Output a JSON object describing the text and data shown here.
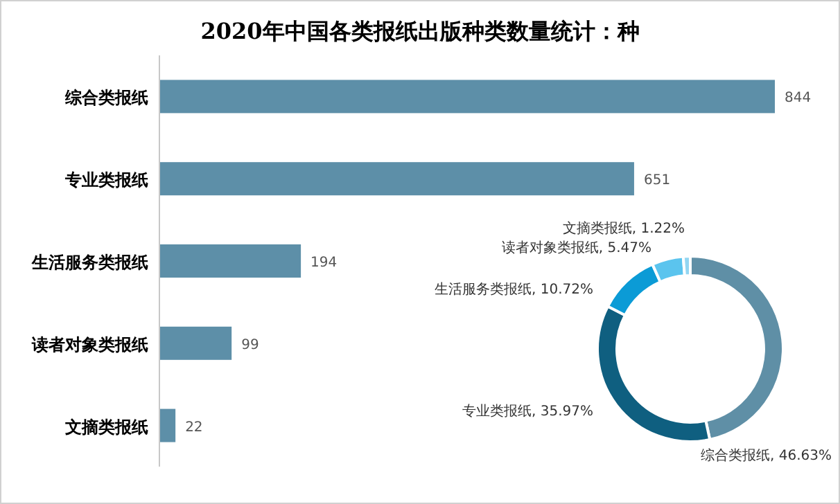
{
  "chart_data": [
    {
      "type": "bar",
      "orientation": "horizontal",
      "title": "2020年中国各类报纸出版种类数量统计：种",
      "categories": [
        "综合类报纸",
        "专业类报纸",
        "生活服务类报纸",
        "读者对象类报纸",
        "文摘类报纸"
      ],
      "values": [
        844,
        651,
        194,
        99,
        22
      ],
      "color": "#5d8fa8",
      "data_labels": true
    },
    {
      "type": "donut",
      "categories": [
        "综合类报纸",
        "专业类报纸",
        "生活服务类报纸",
        "读者对象类报纸",
        "文摘类报纸"
      ],
      "values": [
        46.63,
        35.97,
        10.72,
        5.47,
        1.22
      ],
      "colors": [
        "#5f8fa6",
        "#0f5f80",
        "#0b9bd6",
        "#5bc4ee",
        "#93d6f2"
      ],
      "value_labels": [
        "46.63%",
        "35.97%",
        "10.72%",
        "5.47%",
        "1.22%"
      ]
    }
  ]
}
